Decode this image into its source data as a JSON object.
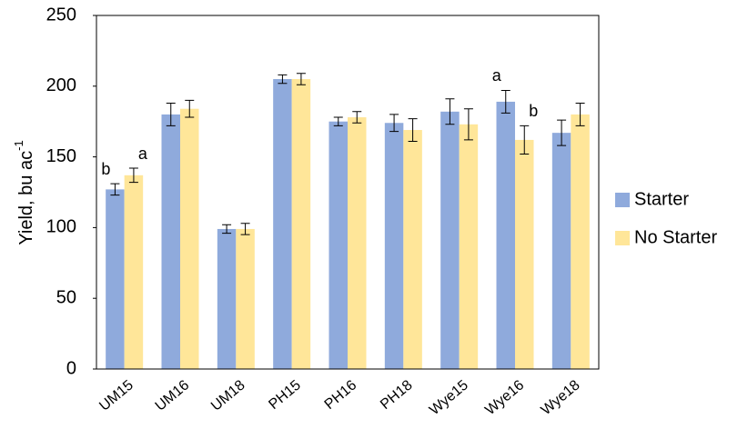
{
  "chart_data": {
    "type": "bar",
    "ylabel": "Yield, bu ac",
    "ylabel_superscript": "-1",
    "categories": [
      "UM15",
      "UM16",
      "UM18",
      "PH15",
      "PH16",
      "PH18",
      "Wye15",
      "Wye16",
      "Wye18"
    ],
    "series": [
      {
        "name": "Starter",
        "color": "#8faadc",
        "values": [
          127,
          180,
          99,
          205,
          175,
          174,
          182,
          189,
          167
        ],
        "errors": [
          4,
          8,
          3,
          3,
          3,
          6,
          9,
          8,
          9
        ],
        "letters": [
          "b",
          null,
          null,
          null,
          null,
          null,
          null,
          "a",
          null
        ]
      },
      {
        "name": "No Starter",
        "color": "#ffe699",
        "values": [
          137,
          184,
          99,
          205,
          178,
          169,
          173,
          162,
          180
        ],
        "errors": [
          5,
          6,
          4,
          4,
          4,
          8,
          11,
          10,
          8
        ],
        "letters": [
          "a",
          null,
          null,
          null,
          null,
          null,
          null,
          "b",
          null
        ]
      }
    ],
    "ylim": [
      0,
      250
    ],
    "yticks": [
      0,
      50,
      100,
      150,
      200,
      250
    ],
    "grid": false,
    "legend": "right"
  }
}
